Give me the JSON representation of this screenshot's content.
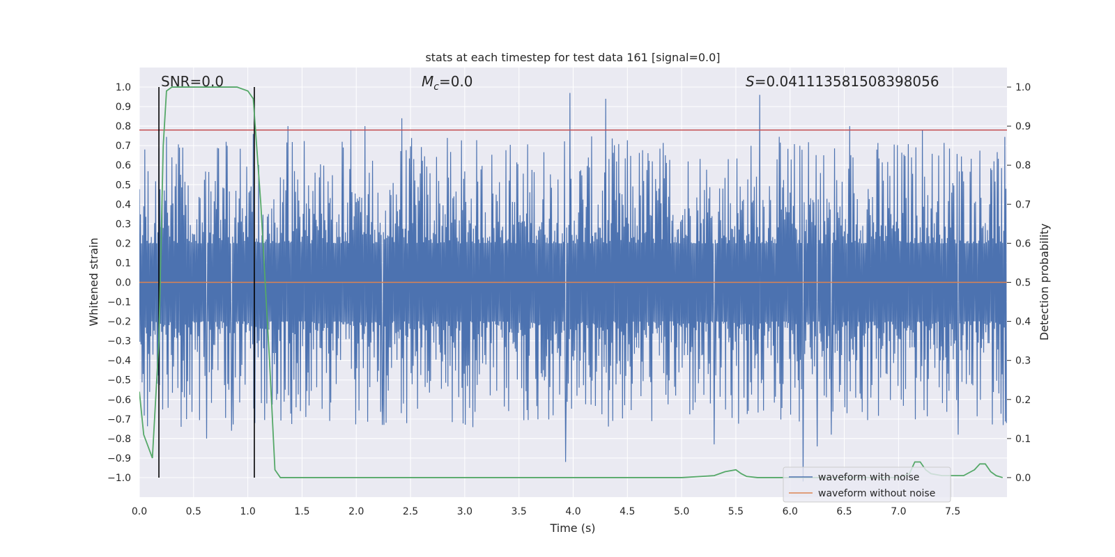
{
  "chart_data": {
    "type": "line",
    "title": "stats at each timestep for test data 161 [signal=0.0]",
    "xlabel": "Time (s)",
    "ylabel": "Whitened strain",
    "ylabel_right": "Detection probability",
    "xlim": [
      0.0,
      8.0
    ],
    "ylim": [
      -1.1,
      1.1
    ],
    "ylim_right": [
      -0.05,
      1.05
    ],
    "x_ticks": [
      0.0,
      0.5,
      1.0,
      1.5,
      2.0,
      2.5,
      3.0,
      3.5,
      4.0,
      4.5,
      5.0,
      5.5,
      6.0,
      6.5,
      7.0,
      7.5
    ],
    "x_tick_labels": [
      "0.0",
      "0.5",
      "1.0",
      "1.5",
      "2.0",
      "2.5",
      "3.0",
      "3.5",
      "4.0",
      "4.5",
      "5.0",
      "5.5",
      "6.0",
      "6.5",
      "7.0",
      "7.5"
    ],
    "y_ticks": [
      1.0,
      0.9,
      0.8,
      0.7,
      0.6,
      0.5,
      0.4,
      0.3,
      0.2,
      0.1,
      0.0,
      -0.1,
      -0.2,
      -0.3,
      -0.4,
      -0.5,
      -0.6,
      -0.7,
      -0.8,
      -0.9,
      -1.0
    ],
    "y_tick_labels": [
      "1.0",
      "0.9",
      "0.8",
      "0.7",
      "0.6",
      "0.5",
      "0.4",
      "0.3",
      "0.2",
      "0.1",
      "0.0",
      "−0.1",
      "−0.2",
      "−0.3",
      "−0.4",
      "−0.5",
      "−0.6",
      "−0.7",
      "−0.8",
      "−0.9",
      "−1.0"
    ],
    "y_right_ticks": [
      1.0,
      0.9,
      0.8,
      0.7,
      0.6,
      0.5,
      0.4,
      0.3,
      0.2,
      0.1,
      0.0
    ],
    "y_right_tick_labels": [
      "1.0",
      "0.9",
      "0.8",
      "0.7",
      "0.6",
      "0.5",
      "0.4",
      "0.3",
      "0.2",
      "0.1",
      "0.0"
    ],
    "annotations": {
      "snr": "SNR=0.0",
      "mc_symbol": "M",
      "mc_subscript": "c",
      "mc_value": "=0.0",
      "s_symbol": "S",
      "s_value": "=0.041113581508398056"
    },
    "threshold": {
      "value": 0.78,
      "color": "#c44e52"
    },
    "vertical_lines": [
      0.18,
      1.06
    ],
    "series": [
      {
        "name": "waveform with noise",
        "color": "#4c72b0",
        "kind": "noise",
        "envelope": 0.55,
        "spikes": [
          [
            0.05,
            0.68
          ],
          [
            0.3,
            0.64
          ],
          [
            0.8,
            0.72
          ],
          [
            1.05,
            0.76
          ],
          [
            1.37,
            0.8
          ],
          [
            1.95,
            0.78
          ],
          [
            2.08,
            0.8
          ],
          [
            2.42,
            0.84
          ],
          [
            3.97,
            0.97
          ],
          [
            4.3,
            0.94
          ],
          [
            5.3,
            0.78
          ],
          [
            5.72,
            0.96
          ],
          [
            6.55,
            0.8
          ],
          [
            7.22,
            0.78
          ],
          [
            7.88,
            0.62
          ],
          [
            0.62,
            -0.8
          ],
          [
            0.85,
            -0.76
          ],
          [
            3.93,
            -0.92
          ],
          [
            5.3,
            -0.83
          ],
          [
            6.12,
            -1.02
          ],
          [
            6.25,
            -0.84
          ],
          [
            6.38,
            -0.78
          ],
          [
            7.55,
            -0.78
          ],
          [
            2.24,
            -0.73
          ]
        ]
      },
      {
        "name": "waveform without noise",
        "color": "#dd8452",
        "kind": "flat",
        "value": 0.0
      },
      {
        "name": "detection probability",
        "color": "#55a868",
        "axis": "right",
        "x": [
          0.0,
          0.04,
          0.08,
          0.12,
          0.18,
          0.22,
          0.25,
          0.3,
          0.35,
          0.5,
          0.7,
          0.9,
          1.0,
          1.05,
          1.12,
          1.2,
          1.25,
          1.3,
          1.5,
          2.0,
          3.0,
          4.0,
          5.0,
          5.3,
          5.4,
          5.5,
          5.55,
          5.6,
          5.7,
          6.0,
          7.0,
          7.1,
          7.15,
          7.2,
          7.25,
          7.3,
          7.4,
          7.6,
          7.7,
          7.75,
          7.8,
          7.85,
          7.9,
          7.96
        ],
        "values": [
          0.22,
          0.11,
          0.08,
          0.05,
          0.35,
          0.85,
          0.99,
          1.0,
          1.0,
          1.0,
          1.0,
          1.0,
          0.99,
          0.97,
          0.7,
          0.3,
          0.02,
          0.0,
          0.0,
          0.0,
          0.0,
          0.0,
          0.0,
          0.005,
          0.015,
          0.02,
          0.01,
          0.003,
          0.0,
          0.0,
          0.0,
          0.01,
          0.04,
          0.04,
          0.02,
          0.01,
          0.005,
          0.005,
          0.02,
          0.035,
          0.035,
          0.015,
          0.005,
          0.0
        ]
      }
    ],
    "legend": {
      "position": "lower-right",
      "entries": [
        {
          "label": "waveform with noise",
          "color": "#4c72b0"
        },
        {
          "label": "waveform without noise",
          "color": "#dd8452"
        }
      ]
    },
    "colors": {
      "axes_bg": "#eaeaf2",
      "grid": "#ffffff",
      "vline": "#000000"
    }
  }
}
